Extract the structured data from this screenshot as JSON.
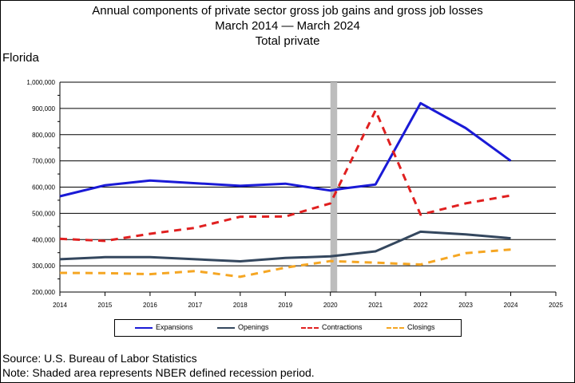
{
  "header": {
    "title_line1": "Annual components of private sector gross job gains and gross job losses",
    "title_line2": "March 2014 — March 2024",
    "title_line3": "Total private",
    "region": "Florida"
  },
  "footer": {
    "source": "Source: U.S. Bureau of Labor Statistics",
    "note": "Note: Shaded area represents NBER defined recession period."
  },
  "chart_data": {
    "type": "line",
    "x": [
      2014,
      2015,
      2016,
      2017,
      2018,
      2019,
      2020,
      2021,
      2022,
      2023,
      2024
    ],
    "xlim": [
      2014,
      2025
    ],
    "x_ticks": [
      "2014",
      "2015",
      "2016",
      "2017",
      "2018",
      "2019",
      "2020",
      "2021",
      "2022",
      "2023",
      "2024",
      "2025"
    ],
    "ylim": [
      200000,
      1000000
    ],
    "y_ticks": [
      "200,000",
      "300,000",
      "400,000",
      "500,000",
      "600,000",
      "700,000",
      "800,000",
      "900,000",
      "1,000,000"
    ],
    "recession_band": [
      2020.0,
      2020.15
    ],
    "series": [
      {
        "name": "Expansions",
        "color": "#1a1ad6",
        "dashed": false,
        "x": [
          2014,
          2015,
          2016,
          2017,
          2018,
          2019,
          2020,
          2020.3,
          2021,
          2022,
          2023,
          2024
        ],
        "values": [
          565000,
          607000,
          625000,
          615000,
          605000,
          613000,
          587000,
          595000,
          610000,
          920000,
          825000,
          700000
        ]
      },
      {
        "name": "Openings",
        "color": "#34475e",
        "dashed": false,
        "x": [
          2014,
          2015,
          2016,
          2017,
          2018,
          2019,
          2020,
          2021,
          2022,
          2023,
          2024
        ],
        "values": [
          325000,
          333000,
          333000,
          325000,
          317000,
          330000,
          336000,
          355000,
          430000,
          420000,
          405000
        ]
      },
      {
        "name": "Contractions",
        "color": "#e02020",
        "dashed": true,
        "x": [
          2014,
          2015,
          2016,
          2017,
          2018,
          2019,
          2020,
          2021,
          2022,
          2023,
          2024
        ],
        "values": [
          403000,
          395000,
          422000,
          445000,
          487000,
          488000,
          538000,
          892000,
          495000,
          538000,
          568000
        ]
      },
      {
        "name": "Closings",
        "color": "#f5a623",
        "dashed": true,
        "x": [
          2014,
          2015,
          2016,
          2017,
          2018,
          2019,
          2020,
          2021,
          2022,
          2023,
          2024
        ],
        "values": [
          273000,
          272000,
          268000,
          280000,
          258000,
          293000,
          318000,
          312000,
          305000,
          348000,
          362000
        ]
      }
    ]
  }
}
